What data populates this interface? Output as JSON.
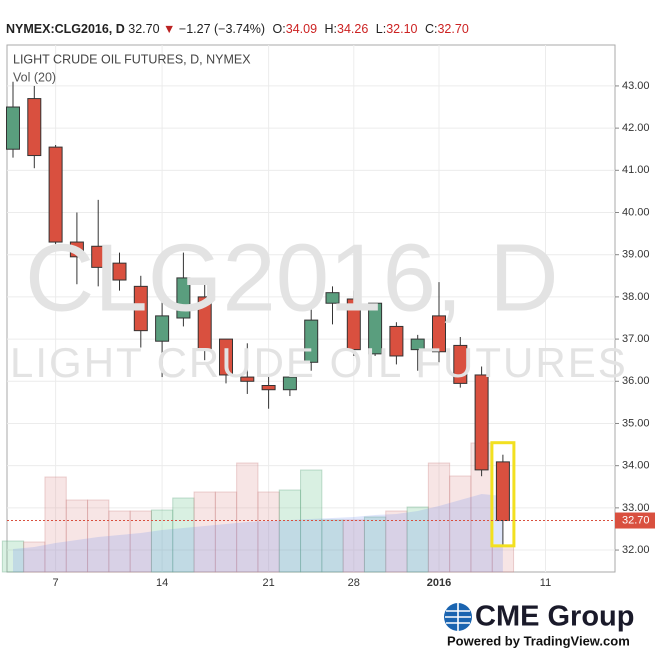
{
  "header": {
    "symbol": "NYMEX:CLG2016, D",
    "last": "32.70",
    "arrow": "▼",
    "change": "−1.27 (−3.74%)",
    "fields": [
      {
        "label": "O:",
        "value": "34.09"
      },
      {
        "label": "H:",
        "value": "34.26"
      },
      {
        "label": "L:",
        "value": "32.10"
      },
      {
        "label": "C:",
        "value": "32.70"
      }
    ]
  },
  "chart_data": {
    "type": "candlestick",
    "title": "LIGHT CRUDE OIL FUTURES, D, NYMEX",
    "volume_label": "Vol (20)",
    "watermark": "CLG2016, D",
    "watermark_subtitle": "LIGHT CRUDE OIL FUTURES",
    "categories": [
      null,
      null,
      "7",
      null,
      null,
      null,
      null,
      "14",
      null,
      null,
      null,
      null,
      "21",
      null,
      null,
      null,
      "28",
      null,
      null,
      null,
      "2016",
      null,
      null,
      null,
      null,
      "11"
    ],
    "open": [
      41.5,
      42.7,
      41.55,
      39.3,
      39.2,
      38.8,
      38.25,
      36.95,
      37.5,
      38.0,
      37.0,
      36.1,
      35.9,
      35.8,
      36.45,
      37.85,
      37.95,
      36.65,
      37.3,
      36.75,
      37.55,
      36.85,
      36.15,
      34.09,
      null,
      null
    ],
    "high": [
      43.1,
      43.0,
      41.6,
      40.0,
      40.3,
      39.05,
      38.5,
      37.9,
      39.05,
      38.45,
      37.0,
      36.9,
      36.15,
      36.1,
      37.7,
      38.25,
      38.15,
      37.85,
      37.4,
      37.1,
      38.35,
      37.05,
      36.35,
      34.26,
      null,
      null
    ],
    "low": [
      41.3,
      41.05,
      39.25,
      38.3,
      38.25,
      38.15,
      36.8,
      36.1,
      37.3,
      36.5,
      35.95,
      35.7,
      35.35,
      35.65,
      36.25,
      37.35,
      36.6,
      36.6,
      36.4,
      36.25,
      36.45,
      35.85,
      33.75,
      32.1,
      null,
      null
    ],
    "close": [
      42.5,
      41.35,
      39.3,
      38.95,
      38.7,
      38.4,
      37.2,
      37.55,
      38.45,
      36.75,
      36.15,
      36.0,
      35.8,
      36.1,
      37.45,
      38.1,
      36.75,
      37.85,
      36.6,
      37.0,
      36.7,
      35.95,
      33.9,
      32.7,
      null,
      null
    ],
    "volume": [
      155,
      150,
      475,
      360,
      360,
      305,
      305,
      310,
      370,
      400,
      400,
      545,
      400,
      410,
      510,
      260,
      260,
      275,
      305,
      325,
      545,
      480,
      645,
      130,
      null,
      null
    ],
    "volume_ma": [
      115,
      125,
      145,
      160,
      175,
      185,
      195,
      210,
      220,
      230,
      240,
      250,
      255,
      260,
      265,
      270,
      275,
      285,
      290,
      305,
      330,
      360,
      390,
      380,
      null,
      null
    ],
    "volume_lim": [
      0,
      2635
    ],
    "ylim": [
      31.48,
      43.97
    ],
    "yticks": [
      {
        "value": 32,
        "label": "32.00"
      },
      {
        "value": 33,
        "label": "33.00"
      },
      {
        "value": 34,
        "label": "34.00"
      },
      {
        "value": 35,
        "label": "35.00"
      },
      {
        "value": 36,
        "label": "36.00"
      },
      {
        "value": 37,
        "label": "37.00"
      },
      {
        "value": 38,
        "label": "38.00"
      },
      {
        "value": 39,
        "label": "39.00"
      },
      {
        "value": 40,
        "label": "40.00"
      },
      {
        "value": 41,
        "label": "41.00"
      },
      {
        "value": 42,
        "label": "42.00"
      },
      {
        "value": 43,
        "label": "43.00"
      }
    ],
    "last_price": {
      "value": 32.7,
      "label": "32.70"
    },
    "up_color": "#5a9e7e",
    "down_color": "#d9503f",
    "grid": true
  },
  "footer": {
    "brand": "CME Group",
    "powered": "Powered by TradingView.com"
  }
}
